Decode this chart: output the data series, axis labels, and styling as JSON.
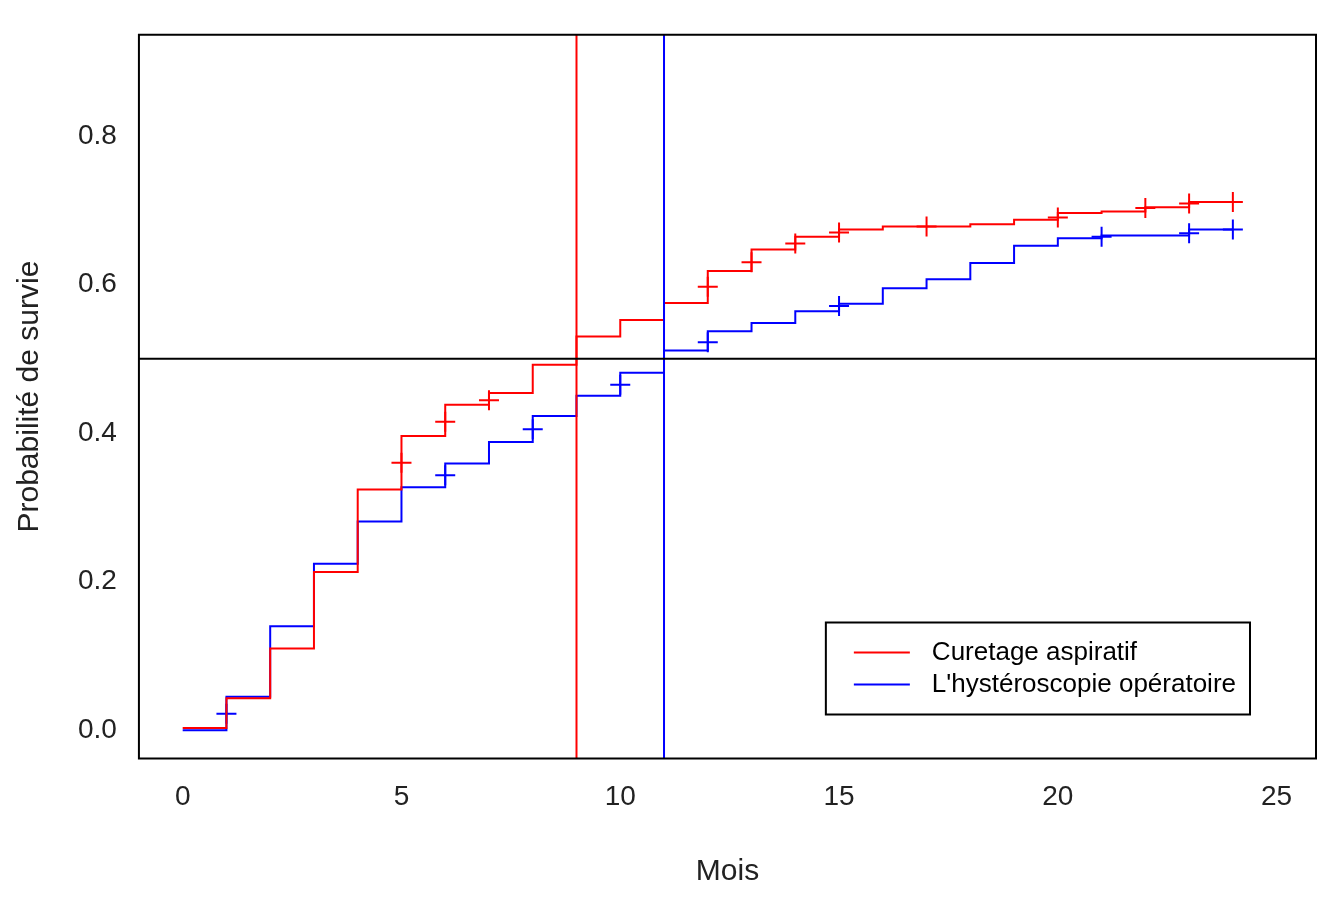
{
  "chart_data": {
    "type": "step",
    "xlabel": "Mois",
    "ylabel": "Probabilité de survie",
    "xlim": [
      -1,
      25.9
    ],
    "ylim": [
      -0.038,
      0.936
    ],
    "xticks": [
      0,
      5,
      10,
      15,
      20,
      25
    ],
    "yticks": [
      {
        "value": 0,
        "label": "0.0"
      },
      0.2,
      0.4,
      0.6,
      0.8
    ],
    "grid": false,
    "legend": "bottom right",
    "series": [
      {
        "name": "Curetage aspiratif",
        "color": "#ff0000",
        "x": [
          0,
          1,
          2,
          3,
          4,
          5,
          6,
          7,
          8,
          9,
          10,
          11,
          12,
          13,
          14,
          15,
          16,
          17,
          18,
          19,
          20,
          21,
          22,
          23,
          24
        ],
        "values": [
          0.003,
          0.043,
          0.11,
          0.213,
          0.324,
          0.396,
          0.438,
          0.454,
          0.492,
          0.53,
          0.552,
          0.575,
          0.618,
          0.647,
          0.664,
          0.674,
          0.678,
          0.678,
          0.681,
          0.687,
          0.696,
          0.698,
          0.704,
          0.711,
          0.711
        ]
      },
      {
        "name": "L'hystéroscopie opératoire",
        "color": "#0000ff",
        "x": [
          0,
          1,
          2,
          3,
          4,
          5,
          6,
          7,
          8,
          9,
          10,
          11,
          12,
          13,
          14,
          15,
          16,
          17,
          18,
          19,
          20,
          21,
          22,
          23,
          24
        ],
        "values": [
          0,
          0.045,
          0.14,
          0.224,
          0.281,
          0.327,
          0.359,
          0.388,
          0.423,
          0.45,
          0.481,
          0.511,
          0.537,
          0.548,
          0.564,
          0.574,
          0.595,
          0.607,
          0.629,
          0.652,
          0.662,
          0.666,
          0.666,
          0.674,
          0.674
        ]
      },
      {
        "type": "scatter",
        "marker": "cross",
        "color": "#ff0000",
        "x": [
          5,
          6,
          7,
          12,
          13,
          14,
          15,
          17,
          20,
          22,
          23,
          24
        ],
        "values": [
          0.36,
          0.415,
          0.444,
          0.597,
          0.63,
          0.655,
          0.67,
          0.678,
          0.69,
          0.703,
          0.709,
          0.711
        ]
      },
      {
        "type": "scatter",
        "marker": "cross",
        "color": "#0000ff",
        "x": [
          1,
          6,
          8,
          10,
          12,
          15,
          21,
          23,
          24
        ],
        "values": [
          0.022,
          0.343,
          0.405,
          0.465,
          0.522,
          0.571,
          0.664,
          0.669,
          0.674
        ]
      }
    ],
    "ref_lines": [
      {
        "axis": "x",
        "value": 9,
        "color": "#ff0000"
      },
      {
        "axis": "x",
        "value": 11,
        "color": "#0000ff"
      },
      {
        "axis": "y",
        "value": 0.5,
        "color": "#000000"
      }
    ]
  }
}
